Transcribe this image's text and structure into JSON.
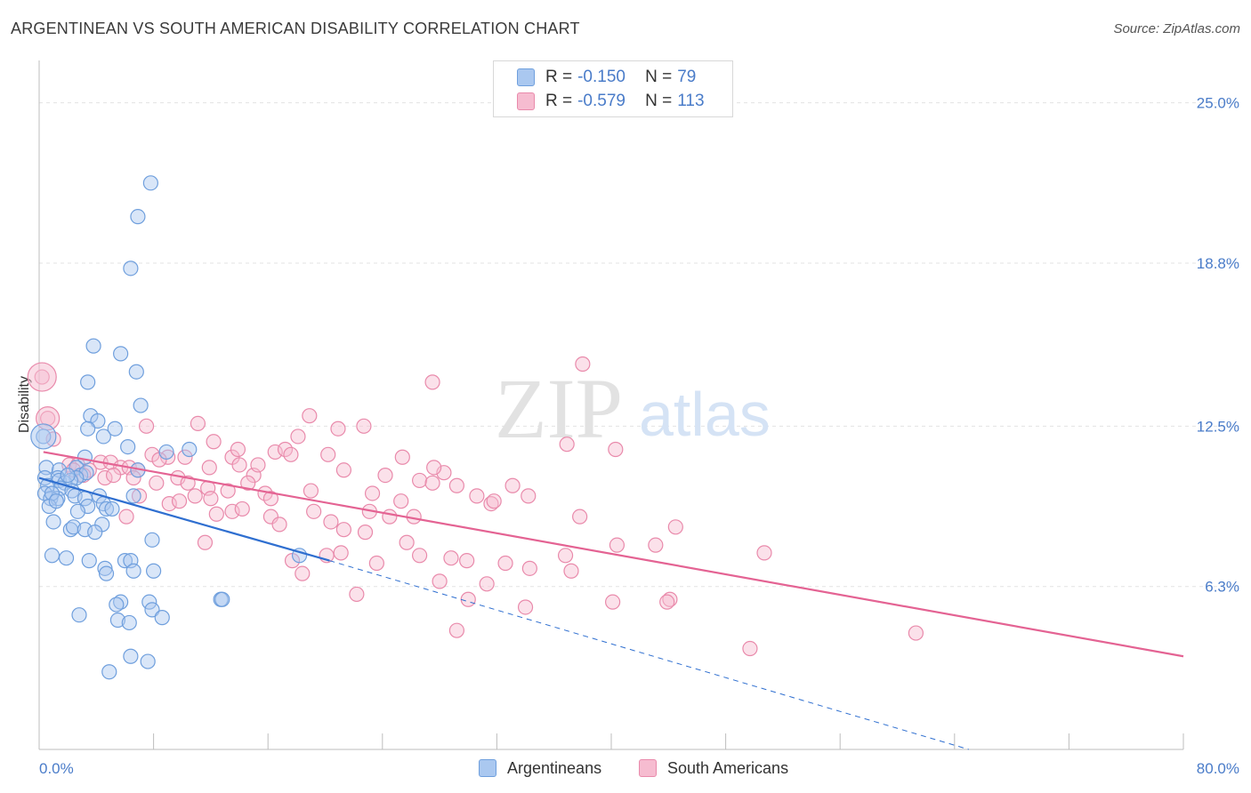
{
  "header": {
    "title": "ARGENTINEAN VS SOUTH AMERICAN DISABILITY CORRELATION CHART",
    "source": "Source: ZipAtlas.com"
  },
  "watermark": {
    "zip": "ZIP",
    "atlas": "atlas"
  },
  "legend": {
    "rows": [
      {
        "r_label": "R =",
        "r_value": "-0.150",
        "n_label": "N =",
        "n_value": "79"
      },
      {
        "r_label": "R =",
        "r_value": "-0.579",
        "n_label": "N =",
        "n_value": "113"
      }
    ]
  },
  "bottom_legend": [
    "Argentineans",
    "South Americans"
  ],
  "colors": {
    "argentineans_fill": "#aac8f0",
    "argentineans_stroke": "#6f9fdd",
    "argentineans_line": "#2f6fd0",
    "south_americans_fill": "#f6bcd0",
    "south_americans_stroke": "#e98aab",
    "south_americans_line": "#e46393",
    "tick_text": "#4a7cc9",
    "grid": "#e3e3e3"
  },
  "chart_data": {
    "type": "scatter",
    "title": "ARGENTINEAN VS SOUTH AMERICAN DISABILITY CORRELATION CHART",
    "xlabel": "",
    "ylabel": "Disability",
    "xlim": [
      0,
      80
    ],
    "ylim": [
      0,
      26.5
    ],
    "x_tick_labels": [
      "0.0%",
      "80.0%"
    ],
    "y_ticks": [
      6.3,
      12.5,
      18.8,
      25.0
    ],
    "y_tick_labels": [
      "6.3%",
      "12.5%",
      "18.8%",
      "25.0%"
    ],
    "grid": true,
    "legend_position": "top-center",
    "series": [
      {
        "name": "Argentineans",
        "r": -0.15,
        "n": 79,
        "trend": {
          "x": [
            0,
            20.3
          ],
          "y": [
            10.5,
            7.3
          ],
          "dashed_to": [
            65,
            0
          ]
        },
        "points": [
          [
            7.8,
            21.9
          ],
          [
            6.9,
            20.6
          ],
          [
            6.4,
            18.6
          ],
          [
            3.8,
            15.6
          ],
          [
            5.7,
            15.3
          ],
          [
            6.8,
            14.6
          ],
          [
            3.4,
            14.2
          ],
          [
            7.1,
            13.3
          ],
          [
            3.6,
            12.9
          ],
          [
            4.1,
            12.7
          ],
          [
            3.4,
            12.4
          ],
          [
            5.3,
            12.4
          ],
          [
            4.5,
            12.1
          ],
          [
            0.3,
            12.1
          ],
          [
            6.2,
            11.7
          ],
          [
            8.9,
            11.5
          ],
          [
            10.5,
            11.6
          ],
          [
            3.2,
            11.3
          ],
          [
            0.5,
            10.9
          ],
          [
            2.6,
            10.9
          ],
          [
            1.4,
            10.8
          ],
          [
            2.9,
            10.6
          ],
          [
            3.3,
            10.7
          ],
          [
            1.3,
            10.5
          ],
          [
            2.6,
            10.5
          ],
          [
            6.9,
            10.8
          ],
          [
            0.4,
            10.5
          ],
          [
            1.4,
            10.4
          ],
          [
            1.8,
            10.3
          ],
          [
            2.2,
            10.4
          ],
          [
            0.6,
            10.2
          ],
          [
            1.5,
            10.1
          ],
          [
            0.4,
            9.9
          ],
          [
            0.8,
            9.7
          ],
          [
            2.3,
            10.0
          ],
          [
            2.5,
            9.8
          ],
          [
            3.2,
            9.7
          ],
          [
            6.6,
            9.8
          ],
          [
            1.3,
            9.7
          ],
          [
            0.9,
            9.9
          ],
          [
            4.2,
            9.8
          ],
          [
            4.5,
            9.5
          ],
          [
            0.7,
            9.4
          ],
          [
            3.4,
            9.4
          ],
          [
            4.7,
            9.3
          ],
          [
            5.1,
            9.3
          ],
          [
            2.7,
            9.2
          ],
          [
            1.0,
            8.8
          ],
          [
            4.4,
            8.7
          ],
          [
            2.2,
            8.5
          ],
          [
            2.4,
            8.6
          ],
          [
            3.2,
            8.5
          ],
          [
            3.9,
            8.4
          ],
          [
            7.9,
            8.1
          ],
          [
            0.9,
            7.5
          ],
          [
            1.9,
            7.4
          ],
          [
            3.5,
            7.3
          ],
          [
            6.0,
            7.3
          ],
          [
            6.4,
            7.3
          ],
          [
            18.2,
            7.5
          ],
          [
            4.6,
            7.0
          ],
          [
            4.7,
            6.8
          ],
          [
            6.6,
            6.9
          ],
          [
            8.0,
            6.9
          ],
          [
            12.7,
            5.8
          ],
          [
            12.8,
            5.8
          ],
          [
            7.7,
            5.7
          ],
          [
            5.7,
            5.7
          ],
          [
            5.4,
            5.6
          ],
          [
            7.9,
            5.4
          ],
          [
            2.8,
            5.2
          ],
          [
            8.6,
            5.1
          ],
          [
            5.5,
            5.0
          ],
          [
            6.3,
            4.9
          ],
          [
            6.4,
            3.6
          ],
          [
            7.6,
            3.4
          ],
          [
            4.9,
            3.0
          ],
          [
            1.2,
            9.6
          ],
          [
            2.0,
            10.6
          ]
        ]
      },
      {
        "name": "South Americans",
        "r": -0.579,
        "n": 113,
        "trend": {
          "x": [
            0.3,
            80
          ],
          "y": [
            11.5,
            3.6
          ]
        },
        "points": [
          [
            0.2,
            14.4
          ],
          [
            0.6,
            12.8
          ],
          [
            1.0,
            12.0
          ],
          [
            2.1,
            11.0
          ],
          [
            2.7,
            11.0
          ],
          [
            4.3,
            11.1
          ],
          [
            5.0,
            11.1
          ],
          [
            5.7,
            10.9
          ],
          [
            6.3,
            10.9
          ],
          [
            6.9,
            10.8
          ],
          [
            2.4,
            10.8
          ],
          [
            3.5,
            10.8
          ],
          [
            4.6,
            10.5
          ],
          [
            5.2,
            10.6
          ],
          [
            6.6,
            10.5
          ],
          [
            7.9,
            11.4
          ],
          [
            9.0,
            11.3
          ],
          [
            10.2,
            11.3
          ],
          [
            11.9,
            10.9
          ],
          [
            13.5,
            11.3
          ],
          [
            14.0,
            11.0
          ],
          [
            15.0,
            10.6
          ],
          [
            16.5,
            11.5
          ],
          [
            17.2,
            11.6
          ],
          [
            18.1,
            12.1
          ],
          [
            18.9,
            12.9
          ],
          [
            20.2,
            11.4
          ],
          [
            20.9,
            12.4
          ],
          [
            22.7,
            12.5
          ],
          [
            24.2,
            10.6
          ],
          [
            25.4,
            11.3
          ],
          [
            23.3,
            9.9
          ],
          [
            26.6,
            10.4
          ],
          [
            27.5,
            10.3
          ],
          [
            28.3,
            10.7
          ],
          [
            29.2,
            10.2
          ],
          [
            30.6,
            9.8
          ],
          [
            31.6,
            9.5
          ],
          [
            33.1,
            10.2
          ],
          [
            34.2,
            9.8
          ],
          [
            36.9,
            11.8
          ],
          [
            38.0,
            14.9
          ],
          [
            40.3,
            11.6
          ],
          [
            27.5,
            14.2
          ],
          [
            7.5,
            12.5
          ],
          [
            11.1,
            12.6
          ],
          [
            12.2,
            11.9
          ],
          [
            13.9,
            11.6
          ],
          [
            15.3,
            11.0
          ],
          [
            17.6,
            11.4
          ],
          [
            19.0,
            10.0
          ],
          [
            21.3,
            10.8
          ],
          [
            3.1,
            10.6
          ],
          [
            9.7,
            10.5
          ],
          [
            10.4,
            10.3
          ],
          [
            11.8,
            10.1
          ],
          [
            13.2,
            10.0
          ],
          [
            14.6,
            10.3
          ],
          [
            15.8,
            9.9
          ],
          [
            16.2,
            9.7
          ],
          [
            8.2,
            10.3
          ],
          [
            9.1,
            9.5
          ],
          [
            9.8,
            9.6
          ],
          [
            10.9,
            9.8
          ],
          [
            12.0,
            9.7
          ],
          [
            7.0,
            9.8
          ],
          [
            6.1,
            9.0
          ],
          [
            12.4,
            9.1
          ],
          [
            13.5,
            9.2
          ],
          [
            14.2,
            9.3
          ],
          [
            16.2,
            9.0
          ],
          [
            16.8,
            8.7
          ],
          [
            19.2,
            9.2
          ],
          [
            20.4,
            8.8
          ],
          [
            21.3,
            8.5
          ],
          [
            22.8,
            8.4
          ],
          [
            23.1,
            9.2
          ],
          [
            24.5,
            9.0
          ],
          [
            25.7,
            8.0
          ],
          [
            26.6,
            7.5
          ],
          [
            28.8,
            7.4
          ],
          [
            29.9,
            7.3
          ],
          [
            32.6,
            7.2
          ],
          [
            34.3,
            7.0
          ],
          [
            36.8,
            7.5
          ],
          [
            37.2,
            6.9
          ],
          [
            40.4,
            7.9
          ],
          [
            43.1,
            7.9
          ],
          [
            44.5,
            8.6
          ],
          [
            50.7,
            7.6
          ],
          [
            44.1,
            5.8
          ],
          [
            40.1,
            5.7
          ],
          [
            34.0,
            5.5
          ],
          [
            31.3,
            6.4
          ],
          [
            28.0,
            6.5
          ],
          [
            22.2,
            6.0
          ],
          [
            20.1,
            7.5
          ],
          [
            17.7,
            7.3
          ],
          [
            18.4,
            6.8
          ],
          [
            21.1,
            7.6
          ],
          [
            23.6,
            7.2
          ],
          [
            29.2,
            4.6
          ],
          [
            30.0,
            5.8
          ],
          [
            31.8,
            9.6
          ],
          [
            27.6,
            10.9
          ],
          [
            37.8,
            9.0
          ],
          [
            43.9,
            5.7
          ],
          [
            49.7,
            3.9
          ],
          [
            61.3,
            4.5
          ],
          [
            25.3,
            9.6
          ],
          [
            26.2,
            9.0
          ],
          [
            11.6,
            8.0
          ],
          [
            8.4,
            11.2
          ]
        ]
      }
    ]
  }
}
